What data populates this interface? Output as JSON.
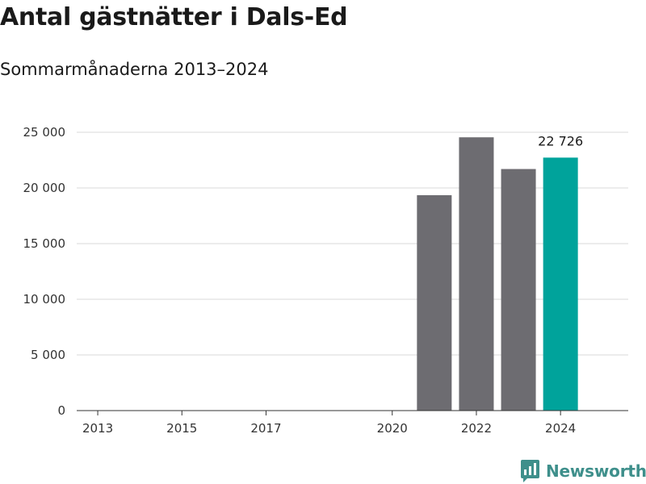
{
  "header": {
    "title": "Antal gästnätter i Dals-Ed",
    "subtitle": "Sommarmånaderna 2013–2024"
  },
  "brand": {
    "name": "Newsworthy"
  },
  "colors": {
    "bar_default": "#6d6c71",
    "bar_highlight": "#00a39b",
    "grid": "#d9d9d9",
    "axis": "#333333",
    "brand": "#3e8f8b"
  },
  "chart_data": {
    "type": "bar",
    "title": "Antal gästnätter i Dals-Ed",
    "subtitle": "Sommarmånaderna 2013–2024",
    "xlabel": "",
    "ylabel": "",
    "categories": [
      "2013",
      "2014",
      "2015",
      "2016",
      "2017",
      "2018",
      "2019",
      "2020",
      "2021",
      "2022",
      "2023",
      "2024"
    ],
    "values": [
      null,
      null,
      null,
      null,
      null,
      null,
      null,
      null,
      19350,
      24550,
      21700,
      22726
    ],
    "highlight_index": 11,
    "data_labels": [
      {
        "category": "2024",
        "text": "22 726"
      }
    ],
    "x_tick_labels": [
      "2013",
      "2015",
      "2017",
      "2020",
      "2022",
      "2024"
    ],
    "ylim": [
      0,
      25000
    ],
    "y_ticks": [
      0,
      5000,
      10000,
      15000,
      20000,
      25000
    ],
    "y_tick_labels": [
      "0",
      "5 000",
      "10 000",
      "15 000",
      "20 000",
      "25 000"
    ],
    "grid": true,
    "legend": "none"
  }
}
